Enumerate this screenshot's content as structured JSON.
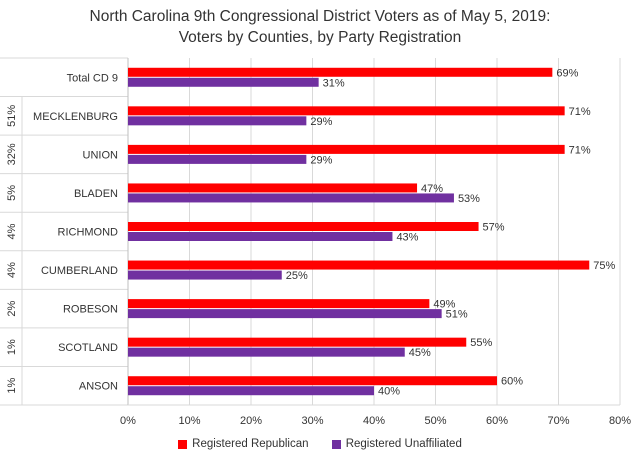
{
  "chart_data": {
    "type": "bar",
    "orientation": "horizontal",
    "title_line1": "North Carolina 9th Congressional District Voters as of May 5, 2019:",
    "title_line2": "Voters by Counties, by Party Registration",
    "categories": [
      "Total CD 9",
      "MECKLENBURG",
      "UNION",
      "BLADEN",
      "RICHMOND",
      "CUMBERLAND",
      "ROBESON",
      "SCOTLAND",
      "ANSON"
    ],
    "district_share": [
      "",
      "51%",
      "32%",
      "5%",
      "4%",
      "4%",
      "2%",
      "1%",
      "1%"
    ],
    "series": [
      {
        "name": "Registered Republican",
        "color": "#ff0000",
        "values": [
          69,
          71,
          71,
          47,
          57,
          75,
          49,
          55,
          60
        ],
        "labels": [
          "69%",
          "71%",
          "71%",
          "47%",
          "57%",
          "75%",
          "49%",
          "55%",
          "60%"
        ]
      },
      {
        "name": "Registered Unaffiliated",
        "color": "#7030a0",
        "values": [
          31,
          29,
          29,
          53,
          43,
          25,
          51,
          45,
          40
        ],
        "labels": [
          "31%",
          "29%",
          "29%",
          "53%",
          "43%",
          "25%",
          "51%",
          "45%",
          "40%"
        ]
      }
    ],
    "xlim": [
      0,
      80
    ],
    "x_ticks": [
      0,
      10,
      20,
      30,
      40,
      50,
      60,
      70,
      80
    ],
    "x_tick_labels": [
      "0%",
      "10%",
      "20%",
      "30%",
      "40%",
      "50%",
      "60%",
      "70%",
      "80%"
    ],
    "gridlines": true,
    "legend_position": "bottom"
  }
}
